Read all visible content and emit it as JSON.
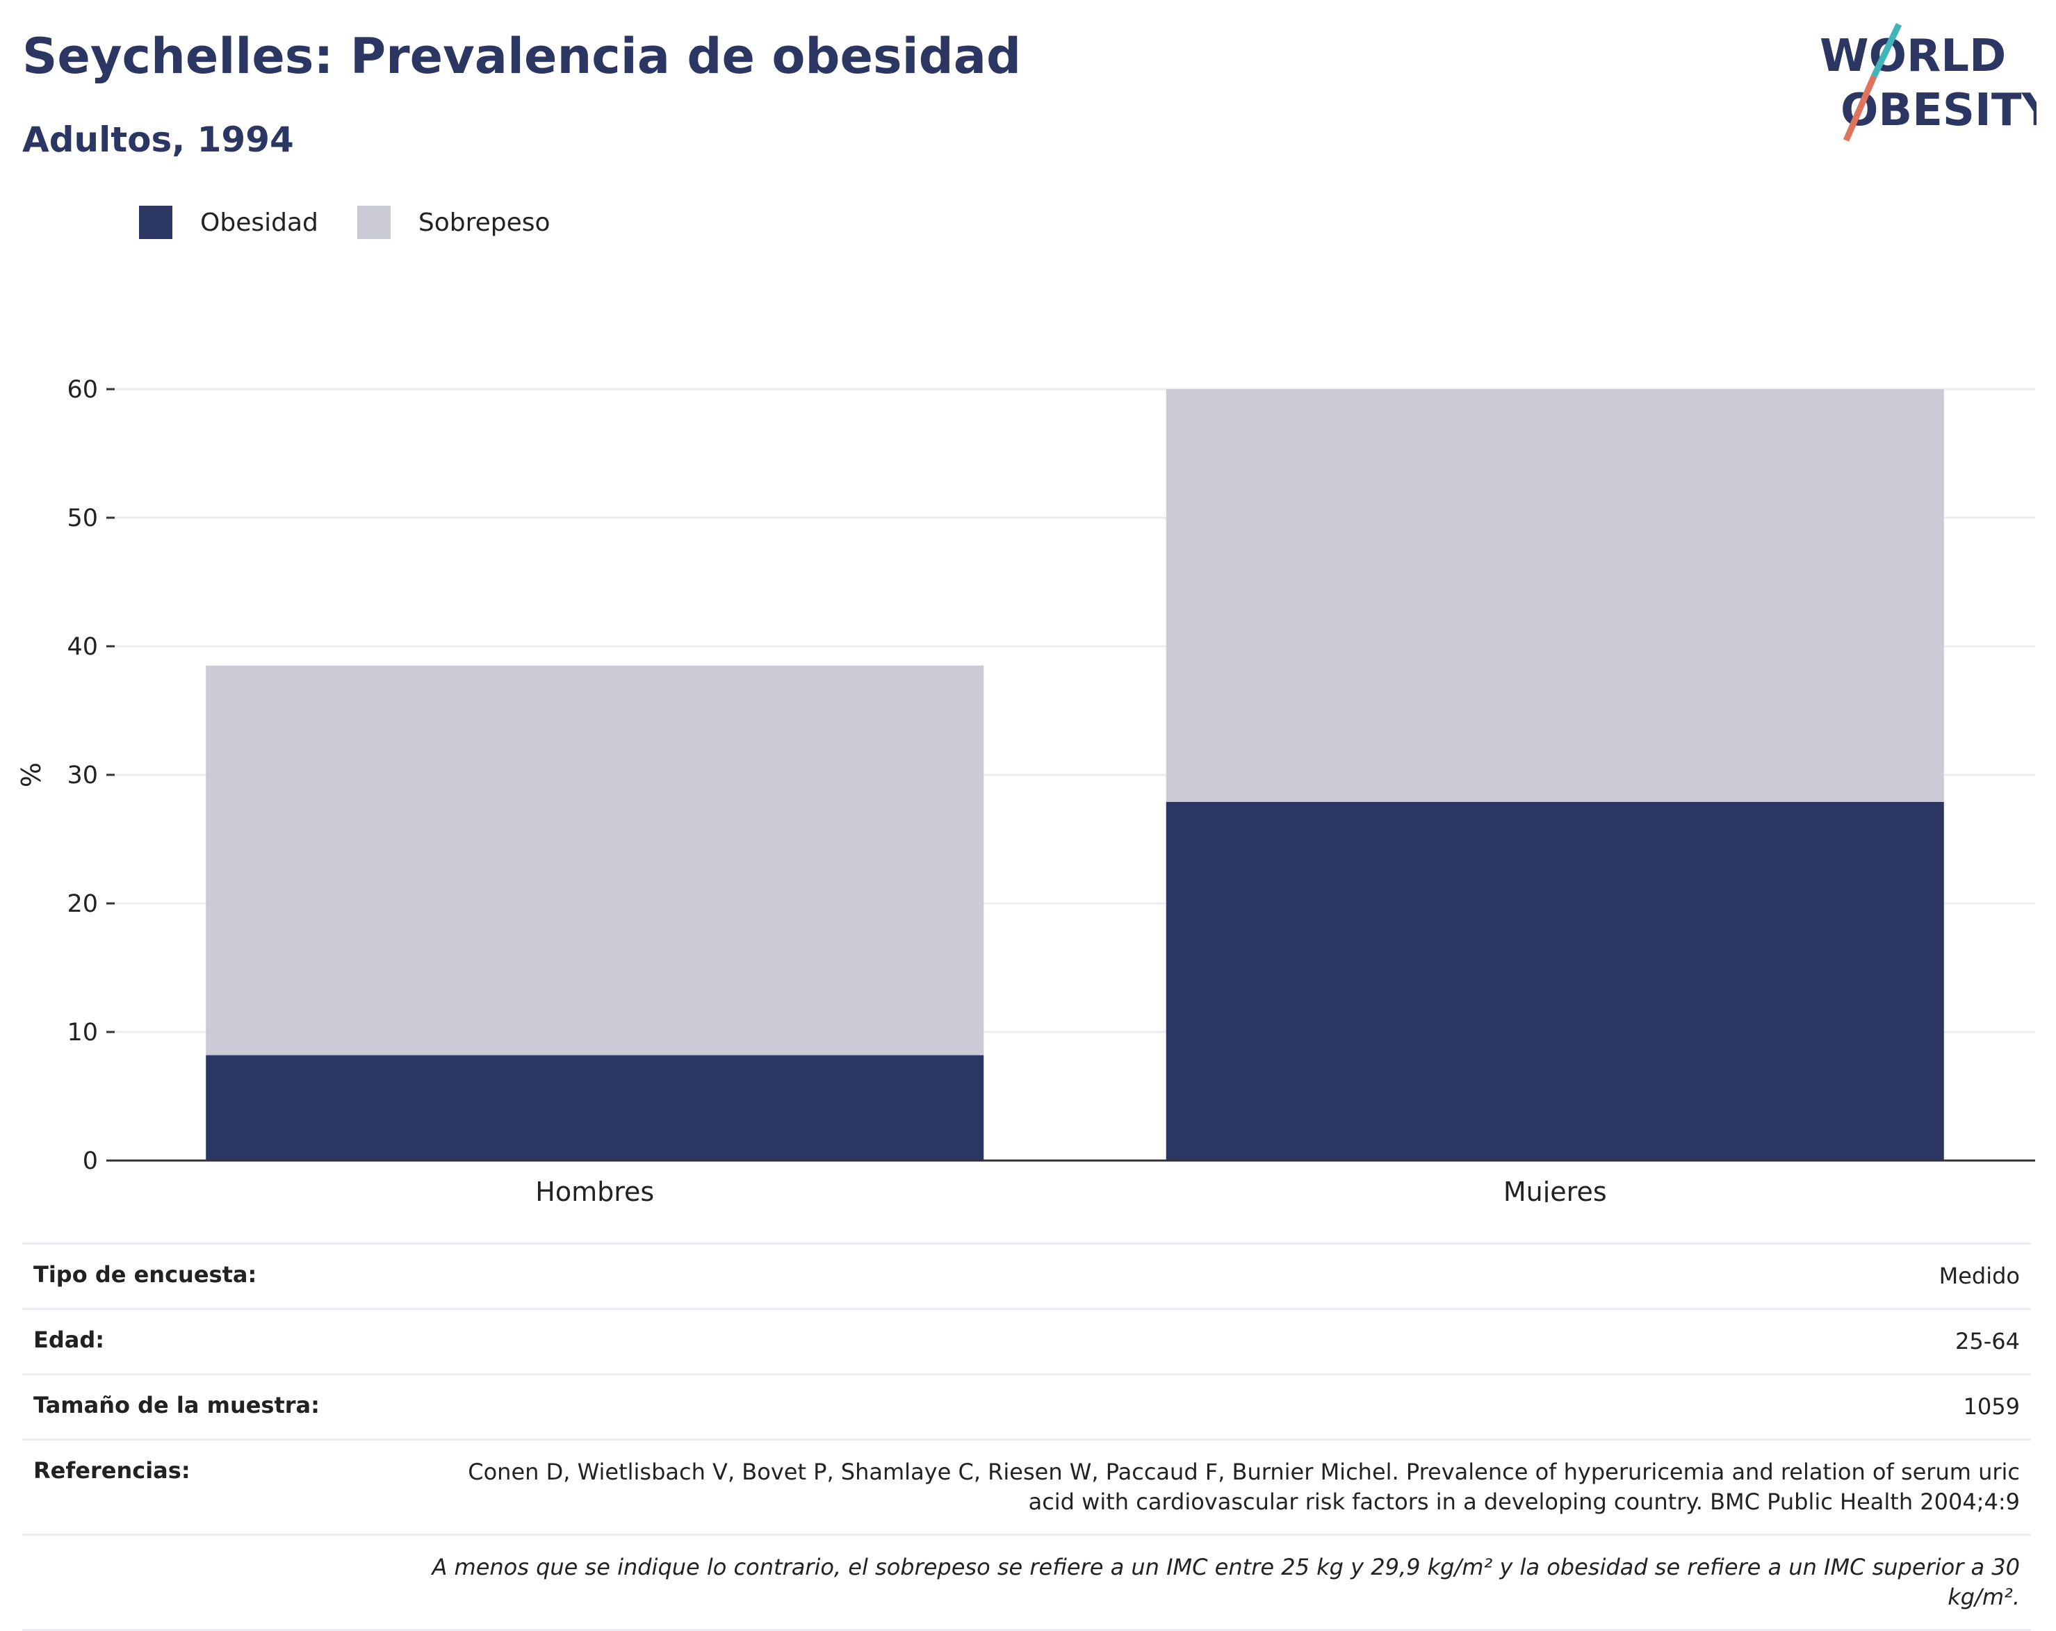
{
  "header": {
    "title": "Seychelles: Prevalencia de obesidad",
    "subtitle": "Adultos, 1994"
  },
  "logo": {
    "line1": "WORLD",
    "line2": "OBESITY"
  },
  "colors": {
    "obesidad": "#2b3663",
    "sobrepeso": "#cacbd6",
    "logo_teal": "#3fb5b8",
    "logo_coral": "#e0735e"
  },
  "chart_data": {
    "type": "bar",
    "stacked": true,
    "categories": [
      "Hombres",
      "Mujeres"
    ],
    "series": [
      {
        "name": "Obesidad",
        "values": [
          8.2,
          27.9
        ]
      },
      {
        "name": "Sobrepeso",
        "values": [
          30.3,
          32.1
        ]
      }
    ],
    "ylabel": "%",
    "ylim": [
      0,
      60
    ],
    "yticks": [
      0,
      10,
      20,
      30,
      40,
      50,
      60
    ],
    "grid": true,
    "legend_position": "top-left"
  },
  "info": {
    "rows": [
      {
        "label": "Tipo de encuesta:",
        "value": "Medido"
      },
      {
        "label": "Edad:",
        "value": "25-64"
      },
      {
        "label": "Tamaño de la muestra:",
        "value": "1059"
      },
      {
        "label": "Referencias:",
        "value": "Conen D, Wietlisbach V, Bovet P, Shamlaye C, Riesen W, Paccaud F, Burnier Michel. Prevalence of hyperuricemia and relation of serum uric acid with cardiovascular risk factors in a developing country. BMC Public Health 2004;4:9"
      }
    ],
    "note": "A menos que se indique lo contrario, el sobrepeso se refiere a un IMC entre 25 kg y 29,9 kg/m² y la obesidad se refiere a un IMC superior a 30 kg/m²."
  }
}
